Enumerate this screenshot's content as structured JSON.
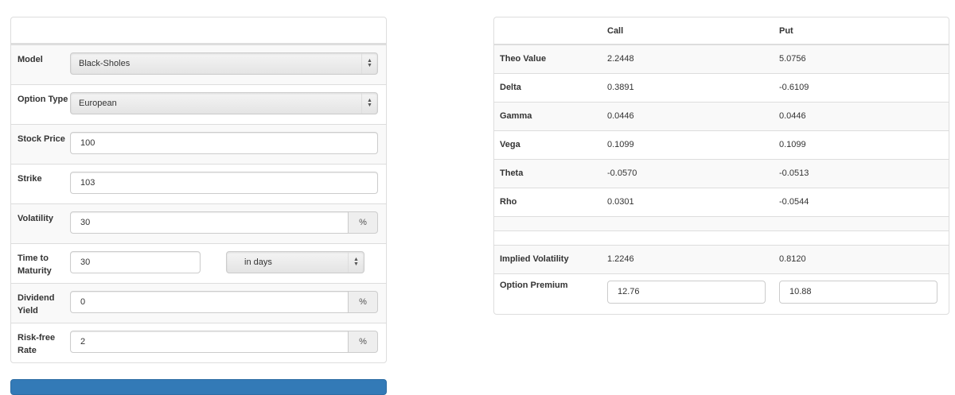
{
  "form": {
    "model": {
      "label": "Model",
      "value": "Black-Sholes"
    },
    "option_type": {
      "label": "Option Type",
      "value": "European"
    },
    "stock_price": {
      "label": "Stock Price",
      "value": "100"
    },
    "strike": {
      "label": "Strike",
      "value": "103"
    },
    "volatility": {
      "label": "Volatility",
      "value": "30",
      "unit": "%"
    },
    "time_to_maturity": {
      "label": "Time to Maturity",
      "value": "30",
      "unit_value": "in days"
    },
    "dividend_yield": {
      "label": "Dividend Yield",
      "value": "0",
      "unit": "%"
    },
    "risk_free_rate": {
      "label": "Risk-free Rate",
      "value": "2",
      "unit": "%"
    }
  },
  "results": {
    "headers": [
      "",
      "Call",
      "Put"
    ],
    "rows": [
      {
        "label": "Theo Value",
        "call": "2.2448",
        "put": "5.0756"
      },
      {
        "label": "Delta",
        "call": "0.3891",
        "put": "-0.6109"
      },
      {
        "label": "Gamma",
        "call": "0.0446",
        "put": "0.0446"
      },
      {
        "label": "Vega",
        "call": "0.1099",
        "put": "0.1099"
      },
      {
        "label": "Theta",
        "call": "-0.0570",
        "put": "-0.0513"
      },
      {
        "label": "Rho",
        "call": "0.0301",
        "put": "-0.0544"
      }
    ],
    "implied_volatility": {
      "label": "Implied Volatility",
      "call": "1.2246",
      "put": "0.8120"
    },
    "option_premium": {
      "label": "Option Premium",
      "call": "12.76",
      "put": "10.88"
    }
  },
  "colors": {
    "primary_button": "#337ab7"
  }
}
